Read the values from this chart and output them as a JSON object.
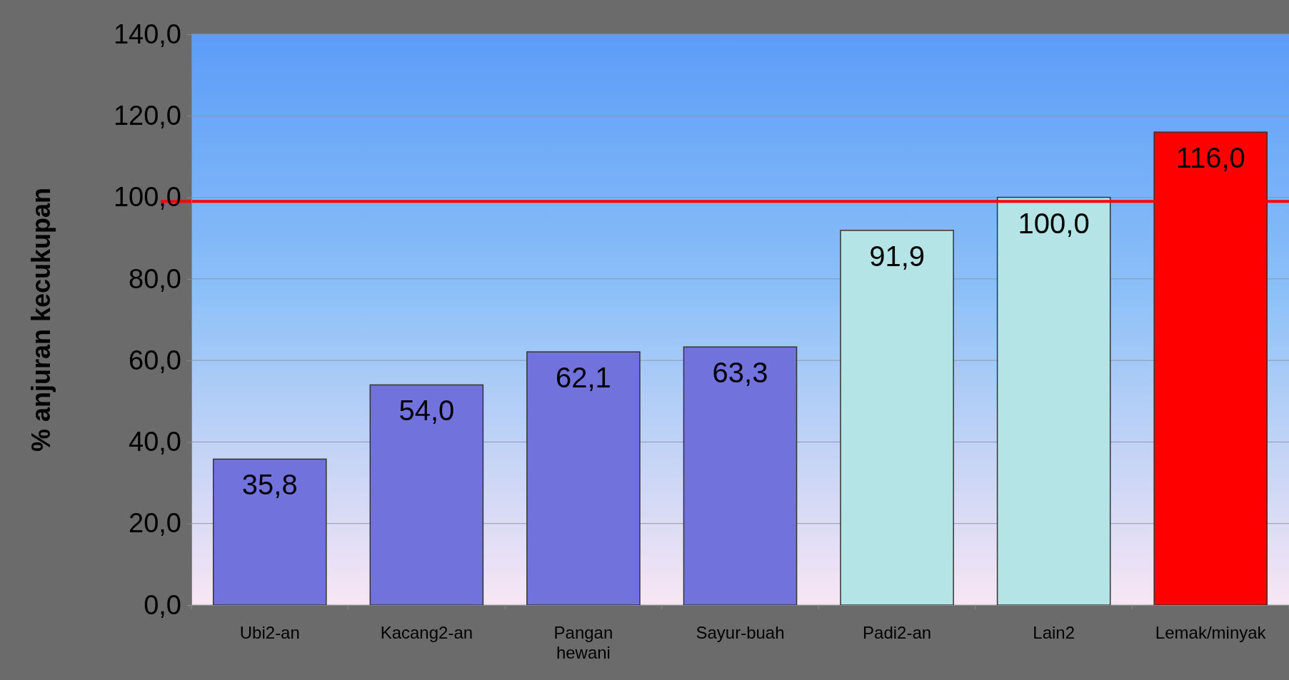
{
  "chart_data": {
    "type": "bar",
    "ylabel": "% anjuran kecukupan",
    "categories": [
      "Ubi2-an",
      "Kacang2-an",
      "Pangan hewani",
      "Sayur-buah",
      "Padi2-an",
      "Lain2",
      "Lemak/minyak"
    ],
    "values": [
      35.8,
      54.0,
      62.1,
      63.3,
      91.9,
      100.0,
      116.0
    ],
    "value_labels": [
      "35,8",
      "54,0",
      "62,1",
      "63,3",
      "91,9",
      "100,0",
      "116,0"
    ],
    "colors": [
      "#7272dc",
      "#7272dc",
      "#7272dc",
      "#7272dc",
      "#b4e4e6",
      "#b4e4e6",
      "#ff0000"
    ],
    "ylim": [
      0,
      140
    ],
    "yticks": [
      {
        "value": 0,
        "label": "0,0"
      },
      {
        "value": 20,
        "label": "20,0"
      },
      {
        "value": 40,
        "label": "40,0"
      },
      {
        "value": 60,
        "label": "60,0"
      },
      {
        "value": 80,
        "label": "80,0"
      },
      {
        "value": 100,
        "label": "100,0"
      },
      {
        "value": 120,
        "label": "120,0"
      },
      {
        "value": 140,
        "label": "140,0"
      }
    ],
    "grid": "y",
    "ref_lines": [
      {
        "axis": "y",
        "value": 99,
        "color": "#ff0000"
      }
    ]
  }
}
